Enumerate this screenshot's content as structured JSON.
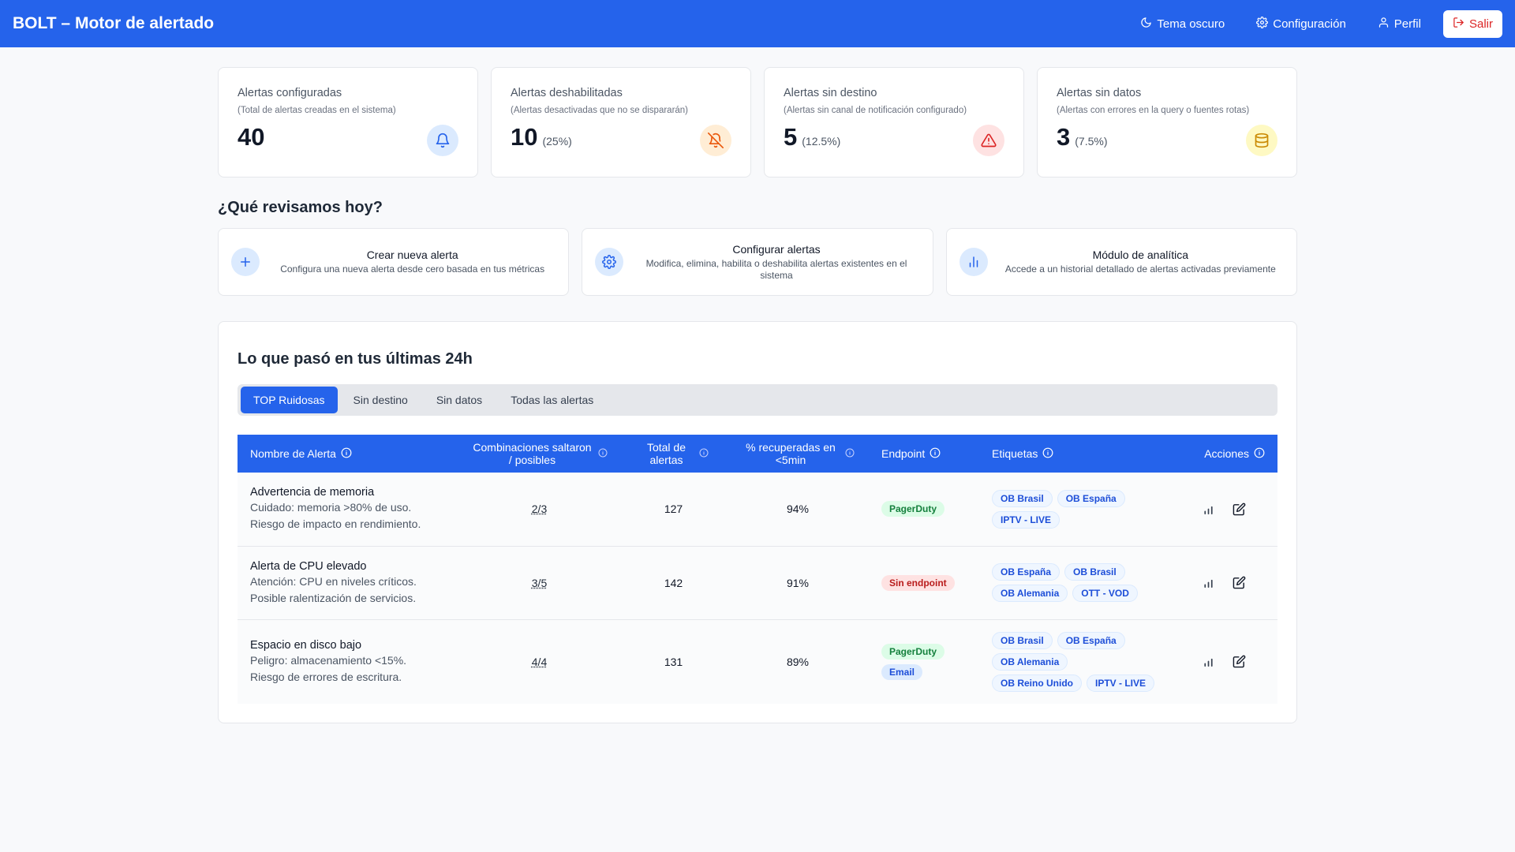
{
  "header": {
    "brand": "BOLT – Motor de alertado",
    "nav": [
      {
        "label": "Tema oscuro",
        "icon": "moon-icon"
      },
      {
        "label": "Configuración",
        "icon": "gear-icon"
      },
      {
        "label": "Perfil",
        "icon": "user-icon"
      }
    ],
    "logout_label": "Salir"
  },
  "stats": [
    {
      "title": "Alertas configuradas",
      "subtitle": "(Total de alertas creadas en el sistema)",
      "value": "40",
      "pct": "",
      "icon": "bell-icon",
      "color": "#2563eb",
      "bg": "#dbeafe"
    },
    {
      "title": "Alertas deshabilitadas",
      "subtitle": "(Alertas desactivadas que no se dispararán)",
      "value": "10",
      "pct": "(25%)",
      "icon": "bell-off-icon",
      "color": "#ea580c",
      "bg": "#ffedd5"
    },
    {
      "title": "Alertas sin destino",
      "subtitle": "(Alertas sin canal de notificación configurado)",
      "value": "5",
      "pct": "(12.5%)",
      "icon": "warning-icon",
      "color": "#dc2626",
      "bg": "#fee2e2"
    },
    {
      "title": "Alertas sin datos",
      "subtitle": "(Alertas con errores en la query o fuentes rotas)",
      "value": "3",
      "pct": "(7.5%)",
      "icon": "database-icon",
      "color": "#ca8a04",
      "bg": "#fef9c3"
    }
  ],
  "review": {
    "title": "¿Qué revisamos hoy?",
    "actions": [
      {
        "title": "Crear nueva alerta",
        "desc": "Configura una nueva alerta desde cero basada en tus métricas",
        "icon": "plus-icon"
      },
      {
        "title": "Configurar alertas",
        "desc": "Modifica, elimina, habilita o deshabilita alertas existentes en el sistema",
        "icon": "gear-icon"
      },
      {
        "title": "Módulo de analítica",
        "desc": "Accede a un historial detallado de alertas activadas previamente",
        "icon": "bar-chart-icon"
      }
    ]
  },
  "recent": {
    "title": "Lo que pasó en tus últimas 24h",
    "tabs": [
      "TOP Ruidosas",
      "Sin destino",
      "Sin datos",
      "Todas las alertas"
    ],
    "active_tab": 0,
    "columns": [
      "Nombre de Alerta",
      "Combinaciones saltaron / posibles",
      "Total de alertas",
      "% recuperadas en <5min",
      "Endpoint",
      "Etiquetas",
      "Acciones"
    ],
    "rows": [
      {
        "name": "Advertencia de memoria",
        "desc1": "Cuidado: memoria >80% de uso.",
        "desc2": "Riesgo de impacto en rendimiento.",
        "combos": "2/3",
        "total": "127",
        "recovered": "94%",
        "endpoints": [
          {
            "label": "PagerDuty",
            "kind": "green"
          }
        ],
        "tags": [
          "OB Brasil",
          "OB España",
          "IPTV - LIVE"
        ]
      },
      {
        "name": "Alerta de CPU elevado",
        "desc1": "Atención: CPU en niveles críticos.",
        "desc2": "Posible ralentización de servicios.",
        "combos": "3/5",
        "total": "142",
        "recovered": "91%",
        "endpoints": [
          {
            "label": "Sin endpoint",
            "kind": "red"
          }
        ],
        "tags": [
          "OB España",
          "OB Brasil",
          "OB Alemania",
          "OTT - VOD"
        ]
      },
      {
        "name": "Espacio en disco bajo",
        "desc1": "Peligro: almacenamiento <15%.",
        "desc2": "Riesgo de errores de escritura.",
        "combos": "4/4",
        "total": "131",
        "recovered": "89%",
        "endpoints": [
          {
            "label": "PagerDuty",
            "kind": "green"
          },
          {
            "label": "Email",
            "kind": "blue"
          }
        ],
        "tags": [
          "OB Brasil",
          "OB España",
          "OB Alemania",
          "OB Reino Unido",
          "IPTV - LIVE"
        ]
      }
    ]
  }
}
